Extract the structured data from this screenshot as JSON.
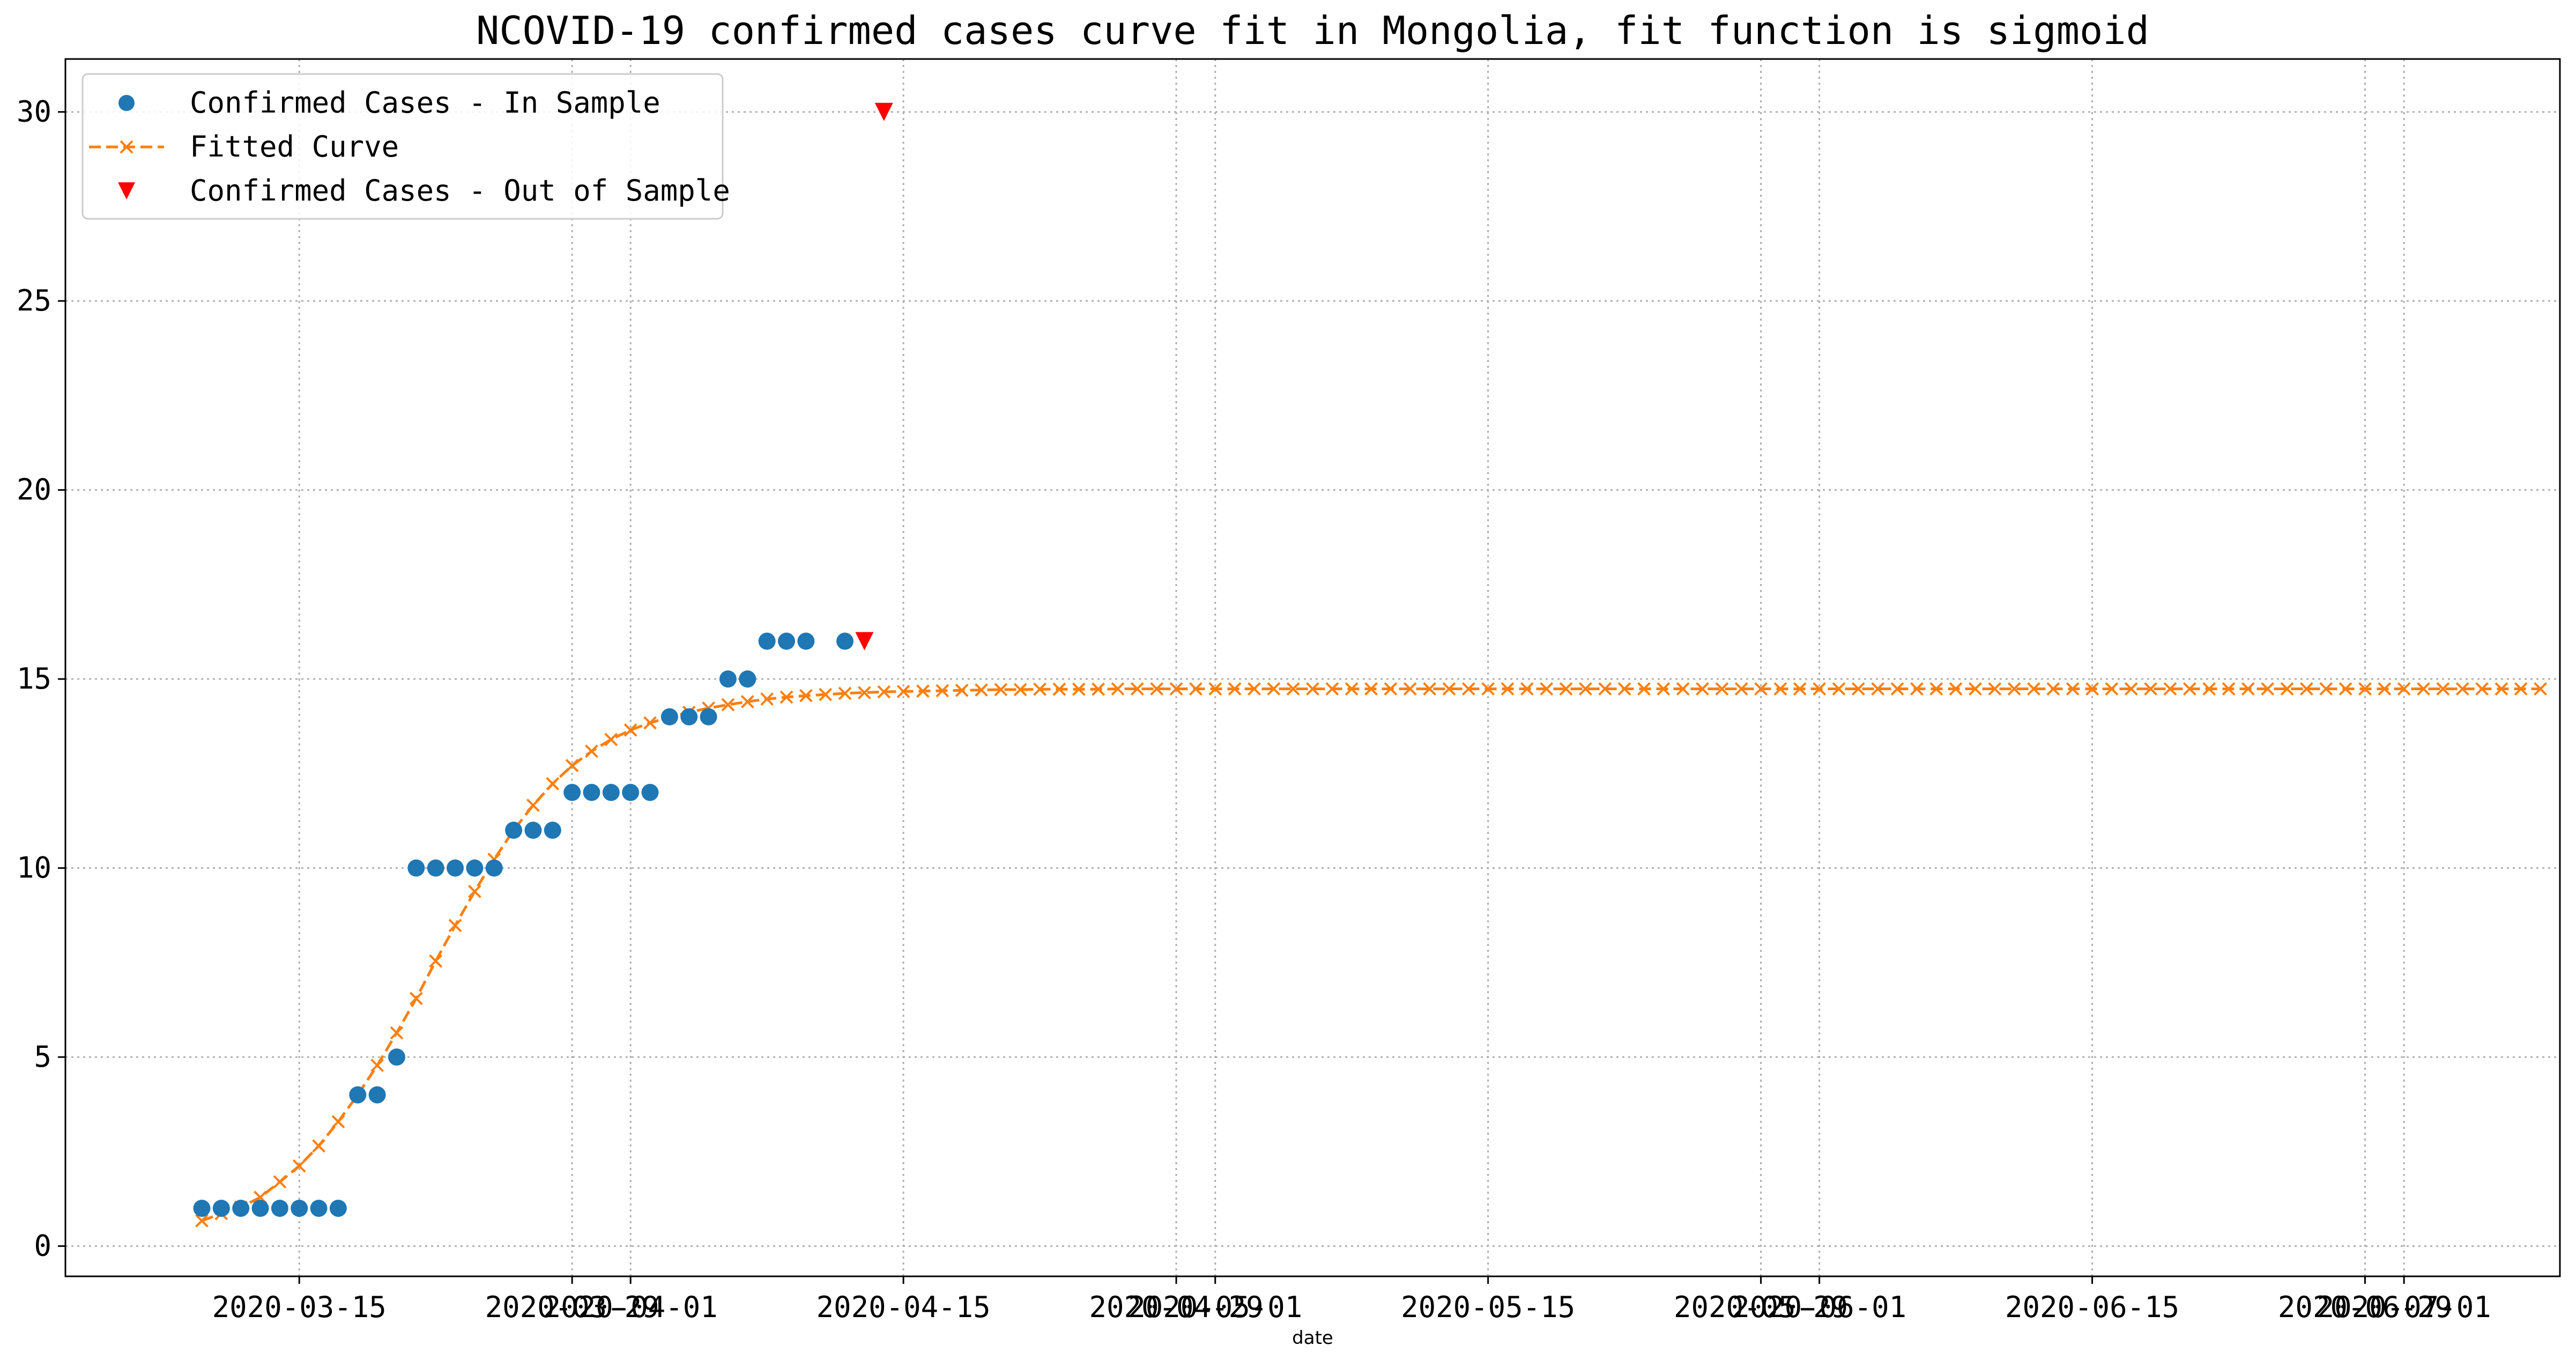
{
  "chart_data": {
    "type": "scatter",
    "title": "NCOVID-19 confirmed cases curve fit in Mongolia, fit function is sigmoid",
    "xlabel": "date",
    "ylabel": "",
    "xlim": [
      "2020-03-03",
      "2020-07-09"
    ],
    "ylim": [
      -0.8,
      31.4
    ],
    "grid": true,
    "legend_position": "top-left",
    "x_ticks": [
      {
        "date": "2020-03-15",
        "label": "2020-03-15"
      },
      {
        "date": "2020-03-29",
        "label": "2020-03-29"
      },
      {
        "date": "2020-04-01",
        "label": "2020-04-01"
      },
      {
        "date": "2020-04-15",
        "label": "2020-04-15"
      },
      {
        "date": "2020-04-29",
        "label": "2020-04-29"
      },
      {
        "date": "2020-05-01",
        "label": "2020-05-01"
      },
      {
        "date": "2020-05-15",
        "label": "2020-05-15"
      },
      {
        "date": "2020-05-29",
        "label": "2020-05-29"
      },
      {
        "date": "2020-06-01",
        "label": "2020-06-01"
      },
      {
        "date": "2020-06-15",
        "label": "2020-06-15"
      },
      {
        "date": "2020-06-29",
        "label": "2020-06-29"
      },
      {
        "date": "2020-07-01",
        "label": "2020-07-01"
      }
    ],
    "y_ticks": [
      0,
      5,
      10,
      15,
      20,
      25,
      30
    ],
    "series": [
      {
        "name": "Confirmed Cases - In Sample",
        "kind": "scatter",
        "marker": "circle",
        "color": "#1f77b4",
        "points": [
          [
            "2020-03-10",
            1
          ],
          [
            "2020-03-11",
            1
          ],
          [
            "2020-03-12",
            1
          ],
          [
            "2020-03-13",
            1
          ],
          [
            "2020-03-14",
            1
          ],
          [
            "2020-03-15",
            1
          ],
          [
            "2020-03-16",
            1
          ],
          [
            "2020-03-17",
            1
          ],
          [
            "2020-03-18",
            4
          ],
          [
            "2020-03-19",
            4
          ],
          [
            "2020-03-20",
            5
          ],
          [
            "2020-03-21",
            10
          ],
          [
            "2020-03-22",
            10
          ],
          [
            "2020-03-23",
            10
          ],
          [
            "2020-03-24",
            10
          ],
          [
            "2020-03-25",
            10
          ],
          [
            "2020-03-26",
            11
          ],
          [
            "2020-03-27",
            11
          ],
          [
            "2020-03-28",
            11
          ],
          [
            "2020-03-29",
            12
          ],
          [
            "2020-03-30",
            12
          ],
          [
            "2020-03-31",
            12
          ],
          [
            "2020-04-01",
            12
          ],
          [
            "2020-04-02",
            12
          ],
          [
            "2020-04-03",
            14
          ],
          [
            "2020-04-04",
            14
          ],
          [
            "2020-04-05",
            14
          ],
          [
            "2020-04-06",
            15
          ],
          [
            "2020-04-07",
            15
          ],
          [
            "2020-04-08",
            16
          ],
          [
            "2020-04-09",
            16
          ],
          [
            "2020-04-10",
            16
          ],
          [
            "2020-04-12",
            16
          ]
        ]
      },
      {
        "name": "Fitted Curve",
        "kind": "line",
        "marker": "x",
        "line_style": "dashed",
        "color": "#ff7f0e",
        "fit_start": "2020-03-10",
        "fit_end": "2020-07-08",
        "values": [
          0.67,
          0.86,
          1.03,
          1.29,
          1.7,
          2.12,
          2.65,
          3.29,
          4.0,
          4.78,
          5.64,
          6.55,
          7.54,
          8.48,
          9.38,
          10.23,
          11.0,
          11.66,
          12.23,
          12.71,
          13.09,
          13.4,
          13.65,
          13.84,
          13.99,
          14.12,
          14.23,
          14.32,
          14.4,
          14.47,
          14.52,
          14.56,
          14.59,
          14.62,
          14.64,
          14.66,
          14.67,
          14.68,
          14.69,
          14.7,
          14.71,
          14.72,
          14.72,
          14.73,
          14.73,
          14.73,
          14.73,
          14.74,
          14.74,
          14.74,
          14.74,
          14.74,
          14.74,
          14.74,
          14.74,
          14.74,
          14.74,
          14.74,
          14.74,
          14.74,
          14.74,
          14.74,
          14.74,
          14.74,
          14.74,
          14.74,
          14.74,
          14.74,
          14.74,
          14.74,
          14.74,
          14.74,
          14.74,
          14.74,
          14.74,
          14.74,
          14.74,
          14.74,
          14.74,
          14.74,
          14.74,
          14.74,
          14.74,
          14.74,
          14.74,
          14.74,
          14.74,
          14.74,
          14.74,
          14.74,
          14.74,
          14.74,
          14.74,
          14.74,
          14.74,
          14.74,
          14.74,
          14.74,
          14.74,
          14.74,
          14.74,
          14.74,
          14.74,
          14.74,
          14.74,
          14.74,
          14.74,
          14.74,
          14.74,
          14.74,
          14.74,
          14.74,
          14.74,
          14.74,
          14.74,
          14.74,
          14.74,
          14.74,
          14.74,
          14.74,
          14.74
        ]
      },
      {
        "name": "Confirmed Cases - Out of Sample",
        "kind": "scatter",
        "marker": "triangle-down",
        "color": "#ff0000",
        "points": [
          [
            "2020-04-13",
            16
          ],
          [
            "2020-04-14",
            30
          ]
        ]
      }
    ]
  }
}
